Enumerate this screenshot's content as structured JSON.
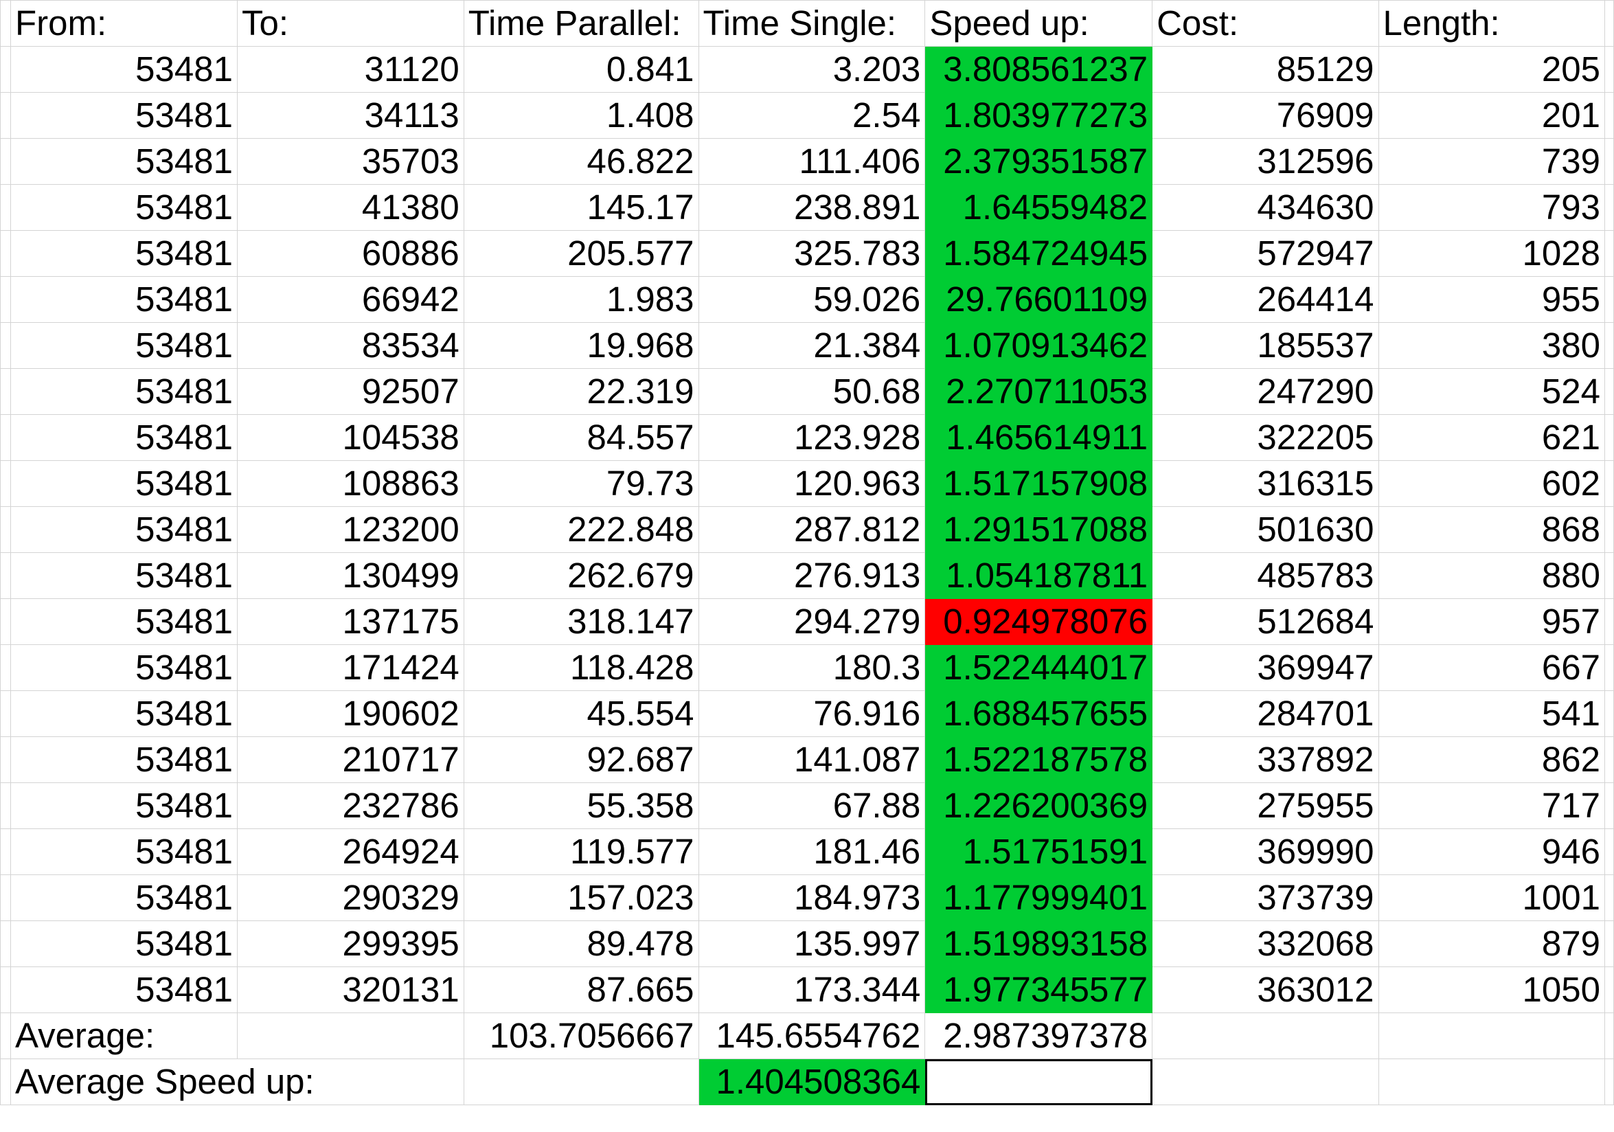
{
  "colors": {
    "good": "#00cc33",
    "bad": "#ff0000",
    "gridline": "#d4d4d4"
  },
  "headers": [
    "From:",
    "To:",
    "Time Parallel:",
    "Time Single:",
    "Speed up:",
    "Cost:",
    "Length:"
  ],
  "rows": [
    {
      "from": "53481",
      "to": "31120",
      "time_parallel": "0.841",
      "time_single": "3.203",
      "speed_up": "3.808561237",
      "cost": "85129",
      "length": "205",
      "status": "good"
    },
    {
      "from": "53481",
      "to": "34113",
      "time_parallel": "1.408",
      "time_single": "2.54",
      "speed_up": "1.803977273",
      "cost": "76909",
      "length": "201",
      "status": "good"
    },
    {
      "from": "53481",
      "to": "35703",
      "time_parallel": "46.822",
      "time_single": "111.406",
      "speed_up": "2.379351587",
      "cost": "312596",
      "length": "739",
      "status": "good"
    },
    {
      "from": "53481",
      "to": "41380",
      "time_parallel": "145.17",
      "time_single": "238.891",
      "speed_up": "1.64559482",
      "cost": "434630",
      "length": "793",
      "status": "good"
    },
    {
      "from": "53481",
      "to": "60886",
      "time_parallel": "205.577",
      "time_single": "325.783",
      "speed_up": "1.584724945",
      "cost": "572947",
      "length": "1028",
      "status": "good"
    },
    {
      "from": "53481",
      "to": "66942",
      "time_parallel": "1.983",
      "time_single": "59.026",
      "speed_up": "29.76601109",
      "cost": "264414",
      "length": "955",
      "status": "good"
    },
    {
      "from": "53481",
      "to": "83534",
      "time_parallel": "19.968",
      "time_single": "21.384",
      "speed_up": "1.070913462",
      "cost": "185537",
      "length": "380",
      "status": "good"
    },
    {
      "from": "53481",
      "to": "92507",
      "time_parallel": "22.319",
      "time_single": "50.68",
      "speed_up": "2.270711053",
      "cost": "247290",
      "length": "524",
      "status": "good"
    },
    {
      "from": "53481",
      "to": "104538",
      "time_parallel": "84.557",
      "time_single": "123.928",
      "speed_up": "1.465614911",
      "cost": "322205",
      "length": "621",
      "status": "good"
    },
    {
      "from": "53481",
      "to": "108863",
      "time_parallel": "79.73",
      "time_single": "120.963",
      "speed_up": "1.517157908",
      "cost": "316315",
      "length": "602",
      "status": "good"
    },
    {
      "from": "53481",
      "to": "123200",
      "time_parallel": "222.848",
      "time_single": "287.812",
      "speed_up": "1.291517088",
      "cost": "501630",
      "length": "868",
      "status": "good"
    },
    {
      "from": "53481",
      "to": "130499",
      "time_parallel": "262.679",
      "time_single": "276.913",
      "speed_up": "1.054187811",
      "cost": "485783",
      "length": "880",
      "status": "good"
    },
    {
      "from": "53481",
      "to": "137175",
      "time_parallel": "318.147",
      "time_single": "294.279",
      "speed_up": "0.924978076",
      "cost": "512684",
      "length": "957",
      "status": "bad"
    },
    {
      "from": "53481",
      "to": "171424",
      "time_parallel": "118.428",
      "time_single": "180.3",
      "speed_up": "1.522444017",
      "cost": "369947",
      "length": "667",
      "status": "good"
    },
    {
      "from": "53481",
      "to": "190602",
      "time_parallel": "45.554",
      "time_single": "76.916",
      "speed_up": "1.688457655",
      "cost": "284701",
      "length": "541",
      "status": "good"
    },
    {
      "from": "53481",
      "to": "210717",
      "time_parallel": "92.687",
      "time_single": "141.087",
      "speed_up": "1.522187578",
      "cost": "337892",
      "length": "862",
      "status": "good"
    },
    {
      "from": "53481",
      "to": "232786",
      "time_parallel": "55.358",
      "time_single": "67.88",
      "speed_up": "1.226200369",
      "cost": "275955",
      "length": "717",
      "status": "good"
    },
    {
      "from": "53481",
      "to": "264924",
      "time_parallel": "119.577",
      "time_single": "181.46",
      "speed_up": "1.51751591",
      "cost": "369990",
      "length": "946",
      "status": "good"
    },
    {
      "from": "53481",
      "to": "290329",
      "time_parallel": "157.023",
      "time_single": "184.973",
      "speed_up": "1.177999401",
      "cost": "373739",
      "length": "1001",
      "status": "good"
    },
    {
      "from": "53481",
      "to": "299395",
      "time_parallel": "89.478",
      "time_single": "135.997",
      "speed_up": "1.519893158",
      "cost": "332068",
      "length": "879",
      "status": "good"
    },
    {
      "from": "53481",
      "to": "320131",
      "time_parallel": "87.665",
      "time_single": "173.344",
      "speed_up": "1.977345577",
      "cost": "363012",
      "length": "1050",
      "status": "good"
    }
  ],
  "average": {
    "label": "Average:",
    "time_parallel": "103.7056667",
    "time_single": "145.6554762",
    "speed_up": "2.987397378"
  },
  "average_speed_up": {
    "label": "Average Speed up:",
    "value": "1.404508364"
  }
}
